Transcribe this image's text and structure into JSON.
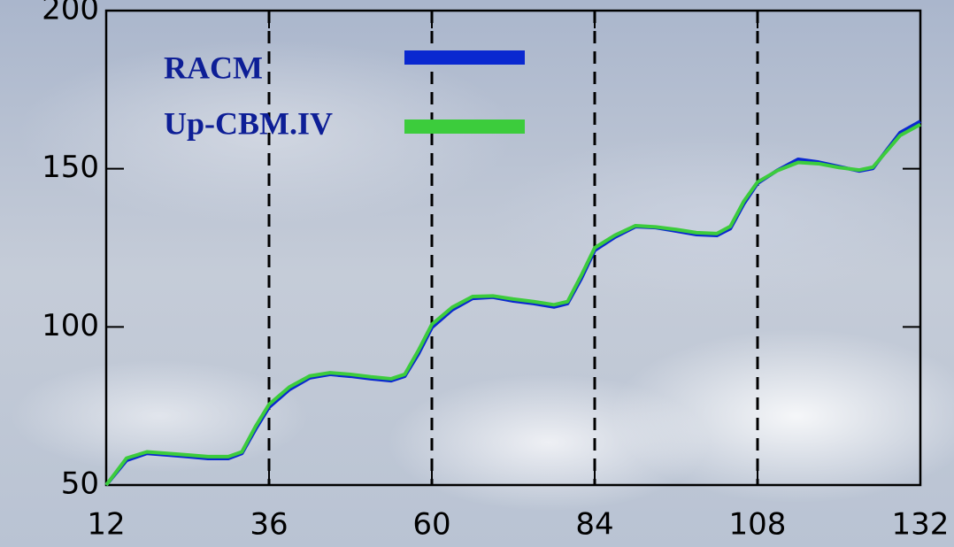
{
  "chart_data": {
    "type": "line",
    "x": [
      12,
      15,
      18,
      21,
      24,
      27,
      30,
      32,
      34,
      36,
      39,
      42,
      45,
      48,
      51,
      54,
      56,
      58,
      60,
      63,
      66,
      69,
      72,
      75,
      78,
      80,
      82,
      84,
      87,
      90,
      93,
      96,
      99,
      102,
      104,
      106,
      108,
      111,
      114,
      117,
      120,
      123,
      125,
      127,
      129,
      132
    ],
    "series": [
      {
        "name": "RACM",
        "color": "#0a28d0",
        "values": [
          50,
          57.8,
          60,
          59.5,
          59,
          58.4,
          58.4,
          60,
          67.6,
          74.6,
          80.2,
          83.9,
          85,
          84.4,
          83.6,
          83,
          84.4,
          91.4,
          99.8,
          105.4,
          109,
          109.4,
          108.2,
          107.4,
          106.3,
          107.4,
          115.2,
          124.2,
          128.4,
          131.7,
          131.4,
          130.3,
          129.2,
          128.9,
          131.1,
          139,
          145.4,
          149.6,
          153,
          152.1,
          150.7,
          149.3,
          150.1,
          155.8,
          161.4,
          165
        ]
      },
      {
        "name": "Up-CBM.IV",
        "color": "#3ccc3c",
        "values": [
          50,
          58.5,
          60.5,
          60,
          59.5,
          59,
          59,
          60.5,
          68.5,
          75.5,
          81,
          84.5,
          85.5,
          85,
          84.2,
          83.6,
          85,
          92.5,
          100.8,
          106.2,
          109.6,
          109.8,
          108.8,
          108,
          107,
          108,
          116.2,
          125,
          129,
          132,
          131.6,
          130.8,
          129.8,
          129.5,
          131.8,
          139.8,
          145.8,
          149.5,
          152,
          151.6,
          150.4,
          149.6,
          150.5,
          155.5,
          160.5,
          164
        ]
      }
    ],
    "vlines": [
      36,
      60,
      84,
      108
    ],
    "xlim": [
      12,
      132
    ],
    "xticks": [
      12,
      36,
      60,
      84,
      108,
      132
    ],
    "ylim": [
      50,
      200
    ],
    "yticks": [
      50,
      100,
      150,
      200
    ]
  }
}
